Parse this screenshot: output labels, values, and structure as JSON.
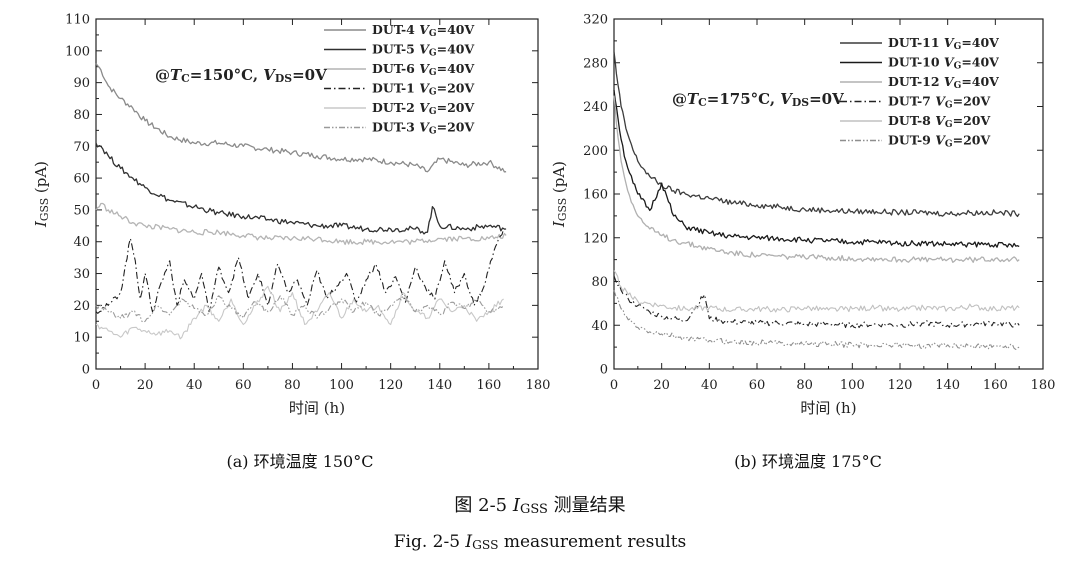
{
  "figure": {
    "caption_cn": {
      "prefix": "图 2-5 ",
      "symbol": "I",
      "symbol_sub": "GSS",
      "suffix": " 测量结果"
    },
    "caption_en": {
      "prefix": "Fig. 2-5 ",
      "symbol": "I",
      "symbol_sub": "GSS",
      "suffix": " measurement results"
    }
  },
  "chart_data": [
    {
      "type": "line",
      "subcaption": "(a) 环境温度 150°C",
      "annotation": {
        "prefix": "@",
        "t_symbol": "T",
        "t_sub": "C",
        "t_value": "=150°C, ",
        "v_symbol": "V",
        "v_sub": "DS",
        "v_value": "=0V"
      },
      "xlabel": "时间 (h)",
      "ylabel": {
        "symbol": "I",
        "sub": "GSS",
        "unit": " (pA)"
      },
      "xlim": [
        0,
        180
      ],
      "ylim": [
        0,
        110
      ],
      "xticks": [
        0,
        20,
        40,
        60,
        80,
        100,
        120,
        140,
        160,
        180
      ],
      "yticks": [
        0,
        10,
        20,
        30,
        40,
        50,
        60,
        70,
        80,
        90,
        100,
        110
      ],
      "legend": "top-right",
      "series": [
        {
          "name": "DUT-4 VG=40V",
          "label_dut": "DUT-4 ",
          "label_v": "V",
          "label_sub": "G",
          "label_val": "=40V",
          "color": "#8a8a8a",
          "dash": "",
          "width": 1.3,
          "x": [
            0,
            2,
            5,
            10,
            15,
            20,
            30,
            40,
            50,
            60,
            70,
            80,
            90,
            100,
            110,
            120,
            130,
            135,
            140,
            150,
            160,
            167
          ],
          "y": [
            96,
            94,
            89,
            85,
            82,
            78,
            73,
            71,
            71,
            70,
            69,
            68,
            67,
            66,
            66,
            65,
            64,
            62,
            66,
            64,
            65,
            62
          ]
        },
        {
          "name": "DUT-5 VG=40V",
          "label_dut": "DUT-5 ",
          "label_v": "V",
          "label_sub": "G",
          "label_val": "=40V",
          "color": "#2f2f2f",
          "dash": "",
          "width": 1.3,
          "x": [
            0,
            2,
            5,
            10,
            15,
            20,
            30,
            40,
            50,
            60,
            70,
            80,
            90,
            100,
            110,
            120,
            130,
            135,
            137,
            140,
            150,
            160,
            167
          ],
          "y": [
            71,
            70,
            67,
            63,
            60,
            57,
            53,
            51,
            49,
            48,
            47,
            46,
            45,
            45,
            44,
            44,
            44,
            43,
            51,
            45,
            44,
            45,
            44
          ]
        },
        {
          "name": "DUT-6 VG=40V",
          "label_dut": "DUT-6 ",
          "label_v": "V",
          "label_sub": "G",
          "label_val": "=40V",
          "color": "#b4b4b4",
          "dash": "",
          "width": 1.3,
          "x": [
            0,
            2,
            5,
            10,
            15,
            20,
            30,
            40,
            50,
            60,
            70,
            80,
            90,
            100,
            110,
            120,
            130,
            140,
            150,
            160,
            167
          ],
          "y": [
            50,
            52,
            50,
            48,
            46,
            45,
            44,
            43,
            43,
            42,
            41,
            41,
            41,
            40,
            40,
            40,
            40,
            41,
            41,
            41,
            42
          ]
        },
        {
          "name": "DUT-1 VG=20V",
          "label_dut": "DUT-1 ",
          "label_v": "V",
          "label_sub": "G",
          "label_val": "=20V",
          "color": "#222222",
          "dash": "7,3,1.5,3",
          "width": 1.1,
          "x": [
            0,
            5,
            10,
            14,
            16,
            18,
            20,
            23,
            26,
            30,
            33,
            36,
            40,
            43,
            46,
            50,
            54,
            58,
            62,
            66,
            70,
            74,
            78,
            82,
            86,
            90,
            94,
            98,
            102,
            106,
            110,
            114,
            118,
            122,
            126,
            130,
            134,
            138,
            142,
            146,
            150,
            154,
            158,
            162,
            166
          ],
          "y": [
            18,
            20,
            24,
            41,
            34,
            22,
            30,
            18,
            26,
            34,
            20,
            28,
            22,
            30,
            18,
            32,
            24,
            35,
            22,
            30,
            20,
            33,
            24,
            28,
            20,
            31,
            22,
            26,
            30,
            21,
            28,
            33,
            24,
            29,
            21,
            32,
            26,
            22,
            34,
            24,
            30,
            20,
            26,
            37,
            44
          ]
        },
        {
          "name": "DUT-2 VG=20V",
          "label_dut": "DUT-2 ",
          "label_v": "V",
          "label_sub": "G",
          "label_val": "=20V",
          "color": "#c8c8c8",
          "dash": "",
          "width": 1.1,
          "x": [
            0,
            5,
            10,
            15,
            20,
            25,
            30,
            35,
            40,
            45,
            50,
            55,
            60,
            65,
            70,
            75,
            80,
            85,
            90,
            95,
            100,
            105,
            110,
            115,
            120,
            125,
            130,
            135,
            140,
            145,
            150,
            155,
            160,
            166
          ],
          "y": [
            14,
            12,
            10,
            13,
            12,
            11,
            12,
            10,
            16,
            20,
            15,
            22,
            14,
            20,
            26,
            18,
            24,
            14,
            18,
            24,
            16,
            22,
            18,
            20,
            14,
            24,
            18,
            16,
            22,
            18,
            20,
            15,
            18,
            22
          ]
        },
        {
          "name": "DUT-3 VG=20V",
          "label_dut": "DUT-3 ",
          "label_v": "V",
          "label_sub": "G",
          "label_val": "=20V",
          "color": "#9a9a9a",
          "dash": "6,2,1.5,2,1.5,2",
          "width": 1.1,
          "x": [
            0,
            5,
            10,
            15,
            20,
            25,
            30,
            35,
            40,
            45,
            50,
            55,
            60,
            65,
            70,
            75,
            80,
            85,
            90,
            95,
            100,
            105,
            110,
            115,
            120,
            125,
            130,
            135,
            140,
            145,
            150,
            155,
            160,
            166
          ],
          "y": [
            20,
            18,
            16,
            18,
            15,
            20,
            17,
            22,
            19,
            17,
            23,
            19,
            16,
            21,
            18,
            23,
            17,
            20,
            16,
            19,
            22,
            18,
            21,
            17,
            20,
            23,
            18,
            20,
            17,
            21,
            19,
            22,
            18,
            20
          ]
        }
      ]
    },
    {
      "type": "line",
      "subcaption": "(b) 环境温度 175°C",
      "annotation": {
        "prefix": "@",
        "t_symbol": "T",
        "t_sub": "C",
        "t_value": "=175°C, ",
        "v_symbol": "V",
        "v_sub": "DS",
        "v_value": "=0V"
      },
      "xlabel": "时间 (h)",
      "ylabel": {
        "symbol": "I",
        "sub": "GSS",
        "unit": " (pA)"
      },
      "xlim": [
        0,
        180
      ],
      "ylim": [
        0,
        320
      ],
      "xticks": [
        0,
        20,
        40,
        60,
        80,
        100,
        120,
        140,
        160,
        180
      ],
      "yticks": [
        0,
        40,
        80,
        120,
        160,
        200,
        240,
        280,
        320
      ],
      "legend": "top-right",
      "series": [
        {
          "name": "DUT-11 VG=40V",
          "label_dut": "DUT-11 ",
          "label_v": "V",
          "label_sub": "G",
          "label_val": "=40V",
          "color": "#3c3c3c",
          "dash": "",
          "width": 1.3,
          "x": [
            0,
            1,
            3,
            5,
            8,
            10,
            15,
            20,
            25,
            30,
            40,
            50,
            60,
            70,
            80,
            90,
            100,
            110,
            120,
            130,
            140,
            150,
            160,
            170
          ],
          "y": [
            290,
            270,
            240,
            220,
            200,
            190,
            176,
            168,
            163,
            160,
            156,
            152,
            150,
            148,
            146,
            145,
            144,
            144,
            143,
            143,
            142,
            143,
            143,
            142
          ]
        },
        {
          "name": "DUT-10 VG=40V",
          "label_dut": "DUT-10 ",
          "label_v": "V",
          "label_sub": "G",
          "label_val": "=40V",
          "color": "#1a1a1a",
          "dash": "",
          "width": 1.3,
          "x": [
            0,
            1,
            3,
            5,
            8,
            10,
            15,
            20,
            25,
            30,
            40,
            50,
            60,
            70,
            80,
            90,
            100,
            110,
            120,
            130,
            140,
            150,
            160,
            170
          ],
          "y": [
            255,
            240,
            210,
            190,
            170,
            160,
            145,
            170,
            140,
            130,
            124,
            121,
            120,
            119,
            118,
            117,
            116,
            116,
            115,
            115,
            114,
            114,
            114,
            112
          ]
        },
        {
          "name": "DUT-12 VG=40V",
          "label_dut": "DUT-12 ",
          "label_v": "V",
          "label_sub": "G",
          "label_val": "=40V",
          "color": "#b0b0b0",
          "dash": "",
          "width": 1.3,
          "x": [
            0,
            1,
            3,
            5,
            8,
            10,
            15,
            20,
            25,
            30,
            40,
            50,
            60,
            70,
            80,
            90,
            100,
            110,
            120,
            130,
            140,
            150,
            160,
            170
          ],
          "y": [
            250,
            225,
            190,
            170,
            150,
            140,
            128,
            122,
            118,
            115,
            110,
            106,
            104,
            103,
            102,
            102,
            101,
            101,
            100,
            100,
            100,
            100,
            101,
            100
          ]
        },
        {
          "name": "DUT-7 VG=20V",
          "label_dut": "DUT-7 ",
          "label_v": "V",
          "label_sub": "G",
          "label_val": "=20V",
          "color": "#222222",
          "dash": "7,3,1.5,3",
          "width": 1.1,
          "x": [
            0,
            3,
            6,
            10,
            15,
            20,
            25,
            30,
            38,
            40,
            45,
            50,
            60,
            70,
            80,
            90,
            100,
            110,
            120,
            130,
            140,
            150,
            160,
            170
          ],
          "y": [
            85,
            72,
            64,
            58,
            52,
            48,
            46,
            44,
            68,
            46,
            44,
            43,
            42,
            42,
            41,
            41,
            40,
            41,
            40,
            42,
            40,
            41,
            42,
            40
          ]
        },
        {
          "name": "DUT-8 VG=20V",
          "label_dut": "DUT-8 ",
          "label_v": "V",
          "label_sub": "G",
          "label_val": "=20V",
          "color": "#c0c0c0",
          "dash": "",
          "width": 1.1,
          "x": [
            0,
            3,
            6,
            10,
            15,
            20,
            25,
            30,
            40,
            50,
            60,
            70,
            80,
            90,
            100,
            110,
            120,
            130,
            140,
            150,
            160,
            170
          ],
          "y": [
            90,
            75,
            68,
            62,
            60,
            58,
            56,
            55,
            56,
            54,
            55,
            54,
            56,
            54,
            55,
            56,
            54,
            56,
            55,
            57,
            55,
            56
          ]
        },
        {
          "name": "DUT-9 VG=20V",
          "label_dut": "DUT-9 ",
          "label_v": "V",
          "label_sub": "G",
          "label_val": "=20V",
          "color": "#8e8e8e",
          "dash": "6,2,1.5,2,1.5,2",
          "width": 1.1,
          "x": [
            0,
            3,
            6,
            10,
            15,
            20,
            25,
            30,
            40,
            50,
            60,
            70,
            80,
            90,
            100,
            110,
            120,
            130,
            140,
            150,
            160,
            170
          ],
          "y": [
            72,
            55,
            45,
            38,
            34,
            32,
            30,
            28,
            26,
            25,
            24,
            24,
            23,
            23,
            22,
            22,
            22,
            21,
            22,
            21,
            21,
            20
          ]
        }
      ]
    }
  ]
}
